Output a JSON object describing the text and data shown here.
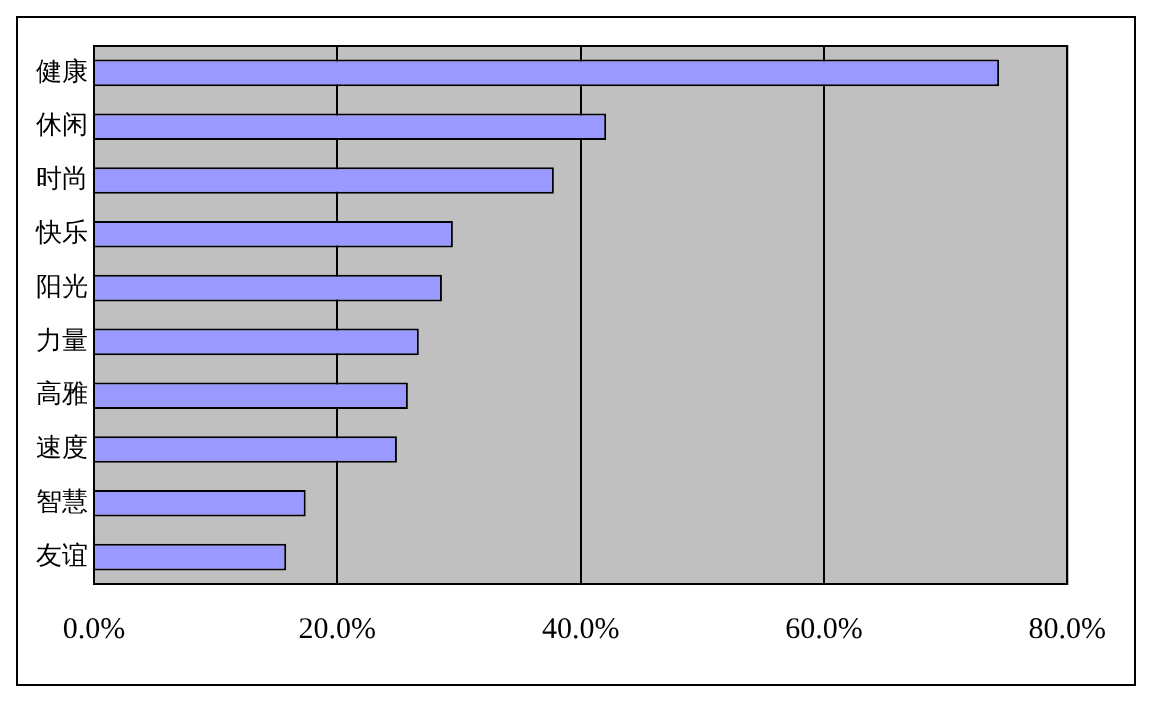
{
  "chart_data": {
    "type": "bar",
    "orientation": "horizontal",
    "categories": [
      "健康",
      "休闲",
      "时尚",
      "快乐",
      "阳光",
      "力量",
      "高雅",
      "速度",
      "智慧",
      "友谊"
    ],
    "values": [
      74.4,
      42.1,
      37.8,
      29.5,
      28.6,
      26.7,
      25.8,
      24.9,
      17.4,
      15.8
    ],
    "color": "#9999ff",
    "xlim": [
      0,
      80
    ],
    "xticks": [
      {
        "value": 0,
        "label": "0.0%"
      },
      {
        "value": 20,
        "label": "20.0%"
      },
      {
        "value": 40,
        "label": "40.0%"
      },
      {
        "value": 60,
        "label": "60.0%"
      },
      {
        "value": 80,
        "label": "80.0%"
      }
    ],
    "grid": "x",
    "legend": false
  }
}
